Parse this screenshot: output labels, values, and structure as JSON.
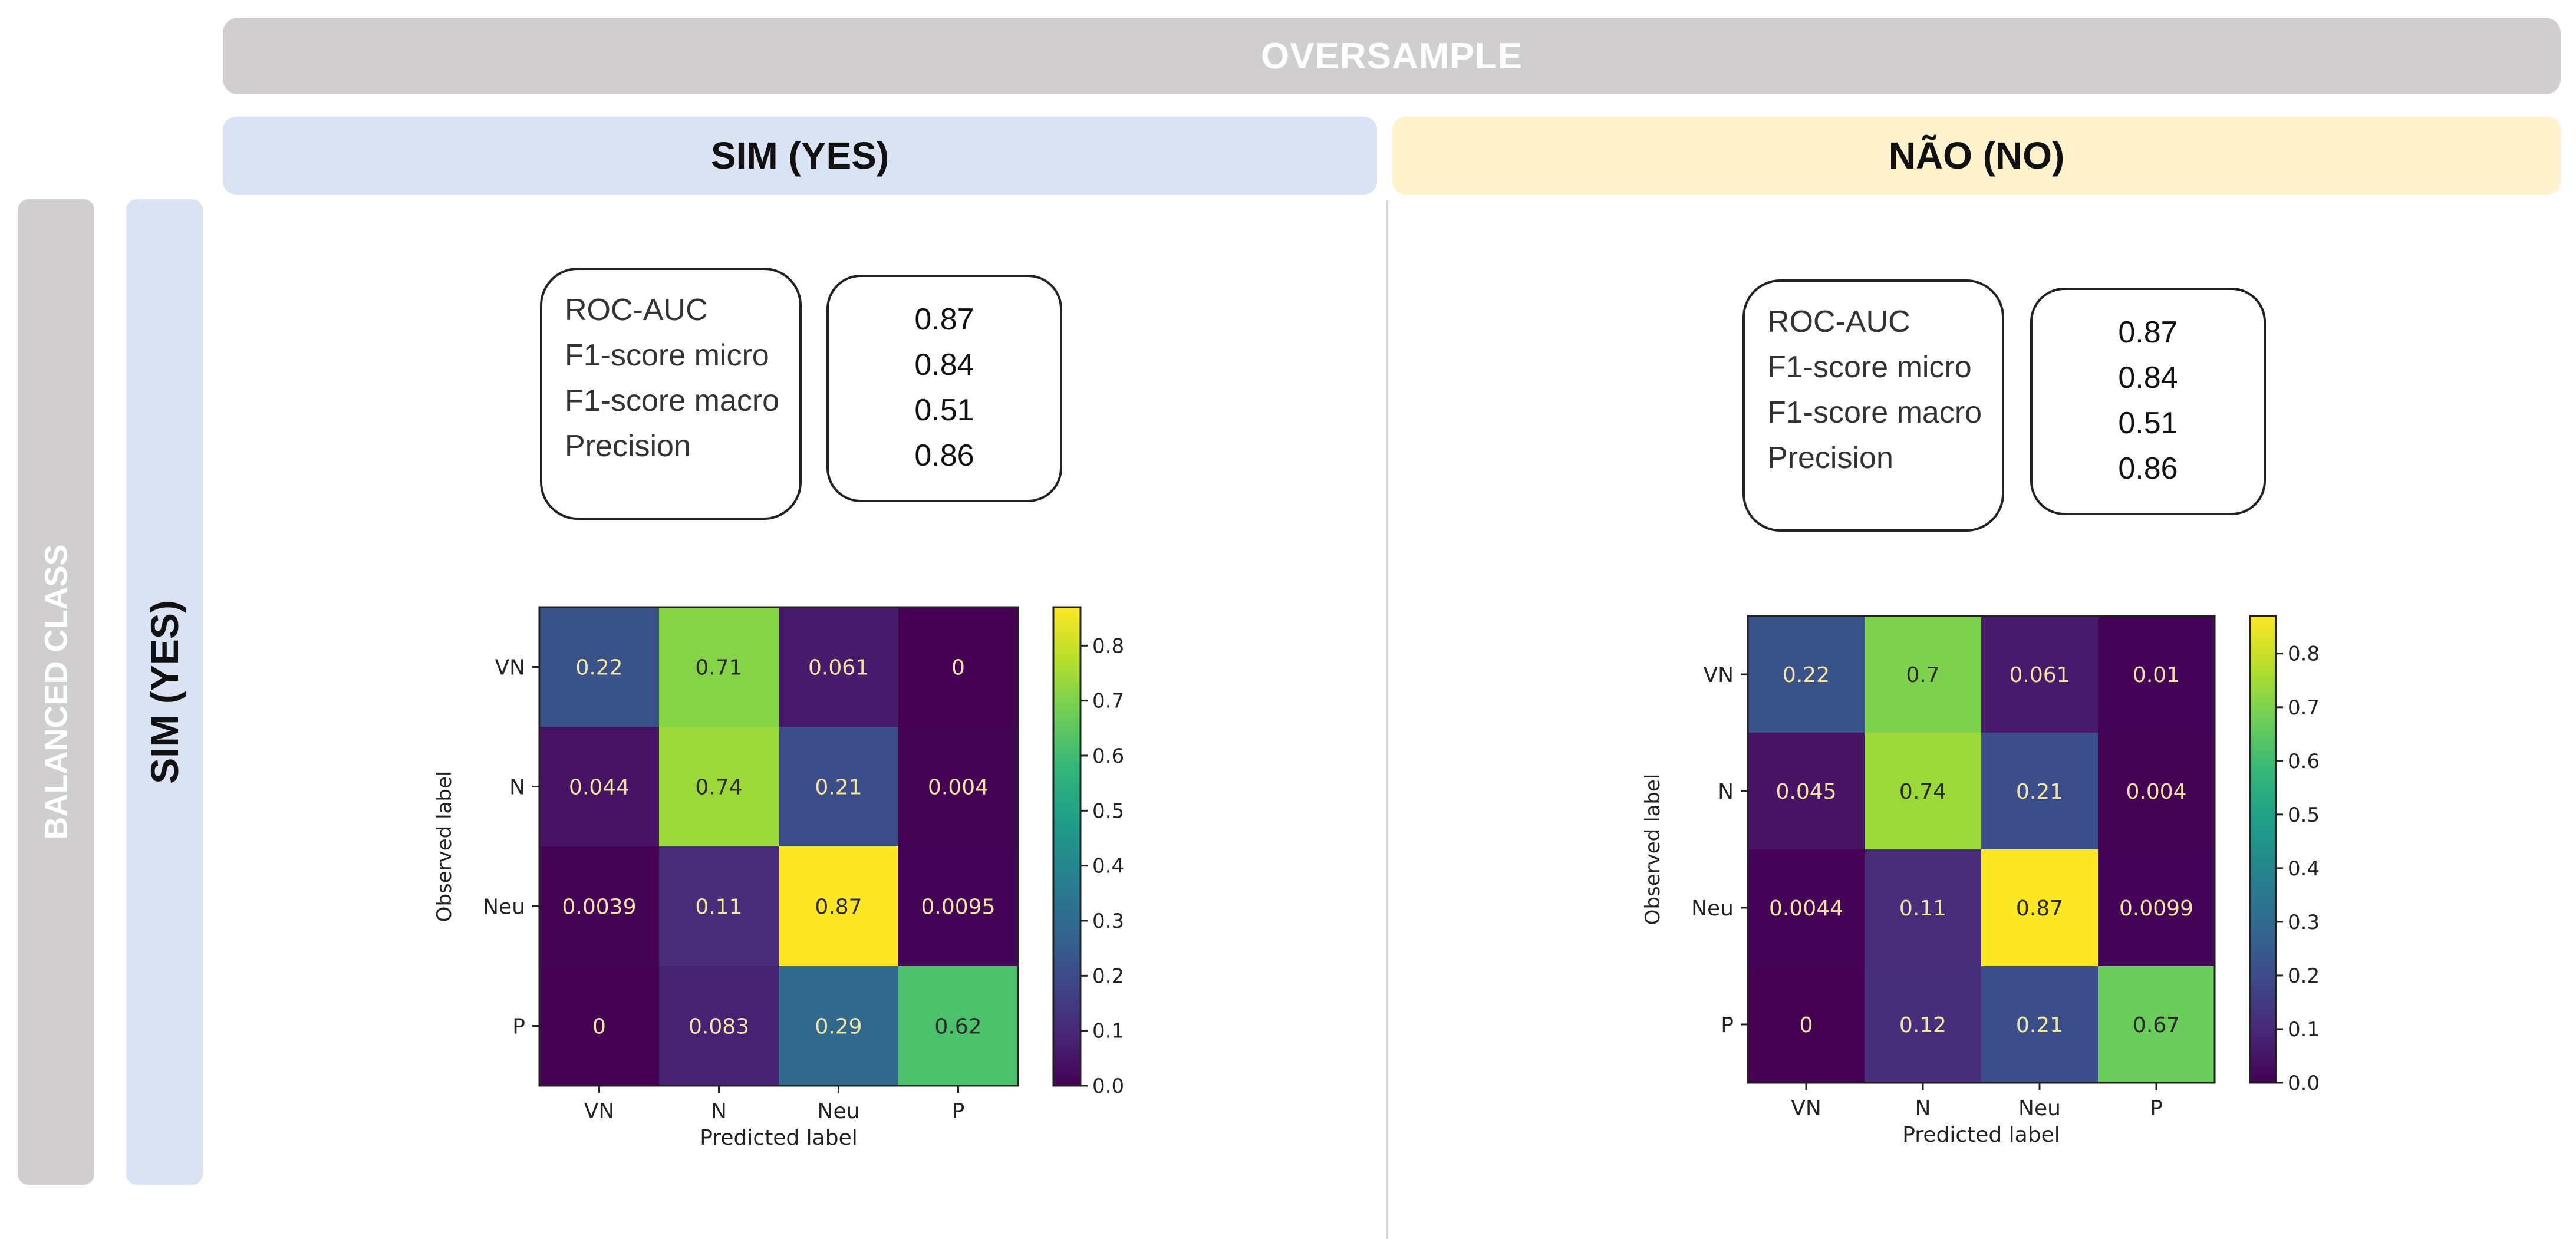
{
  "headers": {
    "oversample": "OVERSAMPLE",
    "col_yes": "SIM (YES)",
    "col_no": "NÃO  (NO)",
    "row_balanced": "BALANCED CLASS",
    "row_yes": "SIM  (YES)"
  },
  "metric_names": [
    "ROC-AUC",
    "F1-score micro",
    "F1-score macro",
    "Precision"
  ],
  "panels": [
    {
      "metrics": [
        "0.87",
        "0.84",
        "0.51",
        "0.86"
      ]
    },
    {
      "metrics": [
        "0.87",
        "0.84",
        "0.51",
        "0.86"
      ]
    }
  ],
  "colors": {
    "oversample_bg": "#d0cece",
    "yes_bg": "#dae3f3",
    "no_bg": "#fff2cc",
    "viridis": [
      "#440154",
      "#482878",
      "#3e4989",
      "#31688e",
      "#26828e",
      "#1f9e89",
      "#35b779",
      "#6ece58",
      "#b5de2b",
      "#fde725"
    ]
  },
  "chart_data": [
    {
      "type": "heatmap",
      "title": "",
      "xlabel": "Predicted label",
      "ylabel": "Observed label",
      "x_categories": [
        "VN",
        "N",
        "Neu",
        "P"
      ],
      "y_categories": [
        "VN",
        "N",
        "Neu",
        "P"
      ],
      "values": [
        [
          0.22,
          0.71,
          0.061,
          0
        ],
        [
          0.044,
          0.74,
          0.21,
          0.004
        ],
        [
          0.0039,
          0.11,
          0.87,
          0.0095
        ],
        [
          0,
          0.083,
          0.29,
          0.62
        ]
      ],
      "labels": [
        [
          "0.22",
          "0.71",
          "0.061",
          "0"
        ],
        [
          "0.044",
          "0.74",
          "0.21",
          "0.004"
        ],
        [
          "0.0039",
          "0.11",
          "0.87",
          "0.0095"
        ],
        [
          "0",
          "0.083",
          "0.29",
          "0.62"
        ]
      ],
      "colorbar_range": [
        0,
        0.87
      ],
      "colorbar_ticks": [
        "0.0",
        "0.1",
        "0.2",
        "0.3",
        "0.4",
        "0.5",
        "0.6",
        "0.7",
        "0.8"
      ]
    },
    {
      "type": "heatmap",
      "title": "",
      "xlabel": "Predicted label",
      "ylabel": "Observed label",
      "x_categories": [
        "VN",
        "N",
        "Neu",
        "P"
      ],
      "y_categories": [
        "VN",
        "N",
        "Neu",
        "P"
      ],
      "values": [
        [
          0.22,
          0.7,
          0.061,
          0.01
        ],
        [
          0.045,
          0.74,
          0.21,
          0.004
        ],
        [
          0.0044,
          0.11,
          0.87,
          0.0099
        ],
        [
          0,
          0.12,
          0.21,
          0.67
        ]
      ],
      "labels": [
        [
          "0.22",
          "0.7",
          "0.061",
          "0.01"
        ],
        [
          "0.045",
          "0.74",
          "0.21",
          "0.004"
        ],
        [
          "0.0044",
          "0.11",
          "0.87",
          "0.0099"
        ],
        [
          "0",
          "0.12",
          "0.21",
          "0.67"
        ]
      ],
      "colorbar_range": [
        0,
        0.87
      ],
      "colorbar_ticks": [
        "0.0",
        "0.1",
        "0.2",
        "0.3",
        "0.4",
        "0.5",
        "0.6",
        "0.7",
        "0.8"
      ]
    }
  ]
}
